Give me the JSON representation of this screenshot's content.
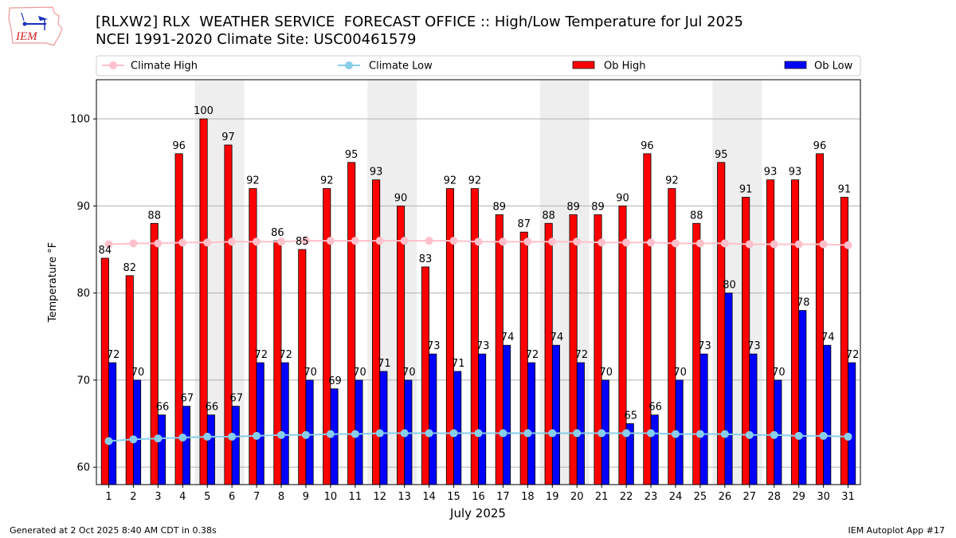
{
  "header": {
    "title_line1": "[RLXW2] RLX  WEATHER SERVICE  FORECAST OFFICE :: High/Low Temperature for Jul 2025",
    "title_line2": "NCEI 1991-2020 Climate Site: USC00461579",
    "logo_text": "IEM"
  },
  "footer": {
    "generated": "Generated at 2 Oct 2025 8:40 AM CDT in 0.38s",
    "app": "IEM Autoplot App #17"
  },
  "colors": {
    "ob_high": "#ff0000",
    "ob_low": "#0000ff",
    "climate_high": "#ffc0cb",
    "climate_low": "#87ceeb",
    "weekend_shade": "#eeeeee",
    "grid": "#b0b0b0"
  },
  "chart_data": {
    "type": "bar",
    "title": "High/Low Temperature for Jul 2025",
    "xlabel": "July 2025",
    "ylabel": "Temperature °F",
    "ylim": [
      58,
      104.5
    ],
    "yticks": [
      60,
      70,
      80,
      90,
      100
    ],
    "grid": "y",
    "legend_position": "top (above plot)",
    "shaded_weekends": [
      [
        5,
        6
      ],
      [
        12,
        13
      ],
      [
        19,
        20
      ],
      [
        26,
        27
      ]
    ],
    "categories": [
      "1",
      "2",
      "3",
      "4",
      "5",
      "6",
      "7",
      "8",
      "9",
      "10",
      "11",
      "12",
      "13",
      "14",
      "15",
      "16",
      "17",
      "18",
      "19",
      "20",
      "21",
      "22",
      "23",
      "24",
      "25",
      "26",
      "27",
      "28",
      "29",
      "30",
      "31"
    ],
    "series": [
      {
        "name": "Ob High",
        "type": "bar",
        "values": [
          84,
          82,
          88,
          96,
          100,
          97,
          92,
          86,
          85,
          92,
          95,
          93,
          90,
          83,
          92,
          92,
          89,
          87,
          88,
          89,
          89,
          90,
          96,
          92,
          88,
          95,
          91,
          93,
          93,
          96,
          91
        ]
      },
      {
        "name": "Ob Low",
        "type": "bar",
        "values": [
          72,
          70,
          66,
          67,
          66,
          67,
          72,
          72,
          70,
          69,
          70,
          71,
          70,
          73,
          71,
          73,
          74,
          72,
          74,
          72,
          70,
          65,
          66,
          70,
          73,
          80,
          73,
          70,
          78,
          74,
          72
        ]
      },
      {
        "name": "Climate High",
        "type": "line",
        "values": [
          85.6,
          85.7,
          85.7,
          85.8,
          85.8,
          85.9,
          85.9,
          85.9,
          86.0,
          86.0,
          86.0,
          86.0,
          86.0,
          86.0,
          86.0,
          85.9,
          85.9,
          85.9,
          85.9,
          85.9,
          85.8,
          85.8,
          85.8,
          85.7,
          85.7,
          85.7,
          85.6,
          85.6,
          85.6,
          85.6,
          85.5
        ]
      },
      {
        "name": "Climate Low",
        "type": "line",
        "values": [
          63.0,
          63.2,
          63.3,
          63.4,
          63.5,
          63.5,
          63.6,
          63.7,
          63.7,
          63.8,
          63.8,
          63.9,
          63.9,
          63.9,
          63.9,
          63.9,
          63.9,
          63.9,
          63.9,
          63.9,
          63.9,
          63.9,
          63.9,
          63.8,
          63.8,
          63.8,
          63.7,
          63.7,
          63.6,
          63.6,
          63.5
        ]
      }
    ],
    "legend": [
      "Climate High",
      "Climate Low",
      "Ob High",
      "Ob Low"
    ]
  }
}
